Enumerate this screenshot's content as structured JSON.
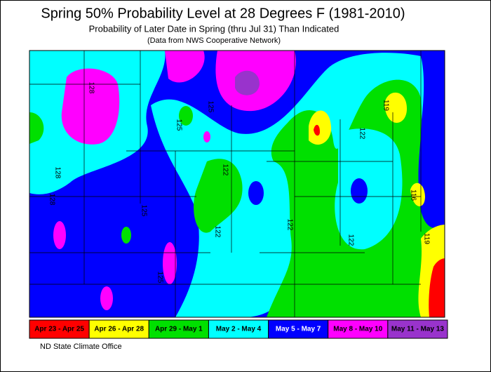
{
  "header": {
    "title": "Spring 50% Probability Level at 28 Degrees F (1981-2010)",
    "subtitle": "Probability of Later Date in Spring (thru Jul 31) Than Indicated",
    "note": "(Data from NWS Cooperative Network)"
  },
  "contour_labels": [
    125,
    125,
    128,
    125,
    125,
    122,
    122,
    122,
    119,
    122,
    116,
    119,
    122,
    128,
    128
  ],
  "legend": [
    {
      "label": "Apr 23 - Apr 25",
      "color": "#ff0000",
      "text_color": "#000000"
    },
    {
      "label": "Apr 26 - Apr 28",
      "color": "#ffff00",
      "text_color": "#000000"
    },
    {
      "label": "Apr 29 - May 1",
      "color": "#00e000",
      "text_color": "#000000"
    },
    {
      "label": "May 2 - May 4",
      "color": "#00ffff",
      "text_color": "#000000"
    },
    {
      "label": "May 5 - May 7",
      "color": "#0000ff",
      "text_color": "#ffffff"
    },
    {
      "label": "May 8 - May 10",
      "color": "#ff00ff",
      "text_color": "#000000"
    },
    {
      "label": "May 11 - May 13",
      "color": "#9933cc",
      "text_color": "#000000"
    }
  ],
  "footer": "ND State Climate Office"
}
